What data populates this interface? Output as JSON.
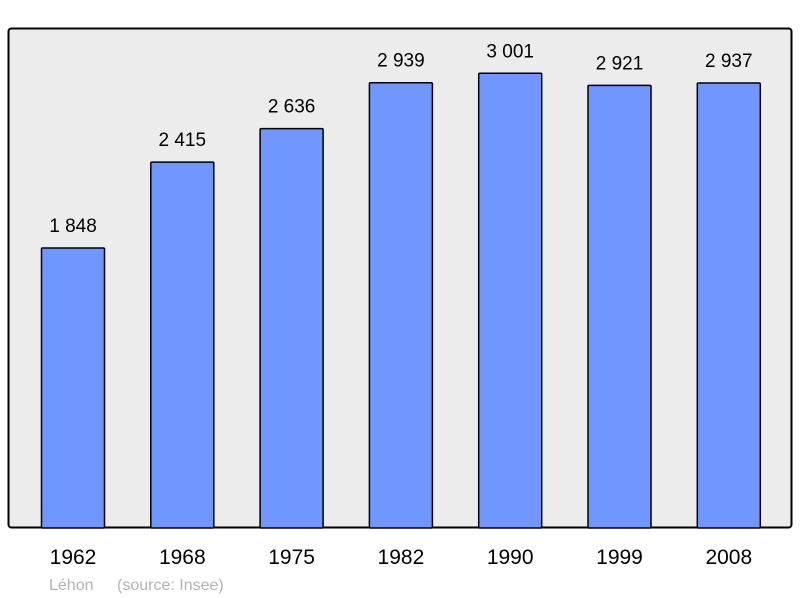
{
  "chart_data": {
    "type": "bar",
    "categories": [
      "1962",
      "1968",
      "1975",
      "1982",
      "1990",
      "1999",
      "2008"
    ],
    "values": [
      1848,
      2415,
      2636,
      2939,
      3001,
      2921,
      2937
    ],
    "value_labels": [
      "1 848",
      "2 415",
      "2 636",
      "2 939",
      "3 001",
      "2 921",
      "2 937"
    ],
    "title": "",
    "xlabel": "",
    "ylabel": "",
    "ylim": [
      0,
      3300
    ],
    "grid": false,
    "colors": {
      "bar": "#6f97ff",
      "bar_stroke": "#000000",
      "background": "#ececec",
      "frame": "#000000"
    }
  },
  "footer": {
    "place": "Léhon",
    "source": "(source: Insee)"
  }
}
